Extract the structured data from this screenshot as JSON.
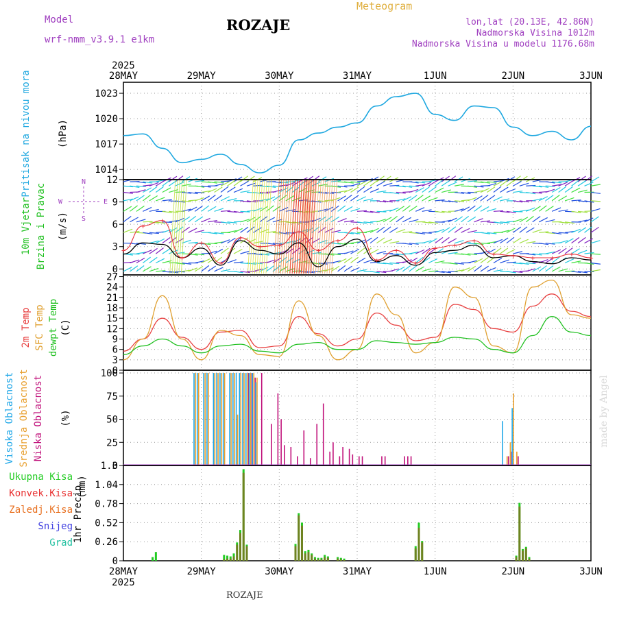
{
  "header": {
    "model_label": "Model",
    "model_name": "wrf-nmm_v3.9.1  e1km",
    "title": "ROZAJE",
    "meteogram": "Meteogram",
    "coords": "lon,lat (20.13E, 42.86N)",
    "elevation": "Nadmorska Visina 1012m",
    "model_elevation": "Nadmorska Visina u modelu 1176.68m"
  },
  "footer": {
    "station": "ROZAJE",
    "watermark": "made by Angel"
  },
  "colors": {
    "pressure": "#1fa8e0",
    "wind_speed": "#000000",
    "gust": "#e8313a",
    "temp2m": "#e84040",
    "sfc_temp": "#e0a030",
    "dewpoint": "#20c020",
    "cloud_high": "#22a8e8",
    "cloud_mid": "#e8a030",
    "cloud_low": "#c0107a",
    "precip_total": "#22cc22",
    "precip_conv": "#e83030",
    "precip_frz": "#e87020",
    "precip_snow": "#4040e0",
    "precip_hail": "#20c0a0",
    "model": "#a040c0"
  },
  "chart_data": [
    {
      "type": "line",
      "title": "",
      "ylabel_lines": [
        "Pritisak na nivou mora",
        "(hPa)"
      ],
      "ylim": [
        1012.8,
        1024.3
      ],
      "y_ticks": [
        1014,
        1017,
        1020,
        1023
      ],
      "x_ticks": [
        "28MAY",
        "29MAY",
        "30MAY",
        "31MAY",
        "1JUN",
        "2JUN",
        "3JUN"
      ],
      "x_year": "2025",
      "x_hours": [
        0,
        6,
        12,
        18,
        24,
        30,
        36,
        42,
        48,
        54,
        60,
        66,
        72,
        78,
        84,
        90,
        96,
        102,
        108,
        114,
        120,
        126,
        132,
        138,
        144
      ],
      "series": [
        {
          "values": [
            1018.0,
            1018.2,
            1016.5,
            1014.8,
            1015.2,
            1015.8,
            1014.6,
            1013.6,
            1014.5,
            1017.5,
            1018.3,
            1019.0,
            1019.5,
            1021.5,
            1022.6,
            1023.0,
            1020.5,
            1019.8,
            1021.5,
            1021.3,
            1019.0,
            1018.0,
            1018.5,
            1017.5,
            1019.1
          ]
        }
      ]
    },
    {
      "type": "line",
      "title": "",
      "ylabel_lines": [
        "10m Vjetar",
        "Brzina i Pravac",
        "(m/s)"
      ],
      "compass": {
        "n": "N",
        "w": "W",
        "e": "E",
        "s": "S"
      },
      "ylim": [
        -0.8,
        12
      ],
      "y_ticks": [
        0,
        3,
        6,
        9,
        12
      ],
      "x_hours": [
        0,
        6,
        12,
        18,
        24,
        30,
        36,
        42,
        48,
        54,
        60,
        66,
        72,
        78,
        84,
        90,
        96,
        102,
        108,
        114,
        120,
        126,
        132,
        138,
        144
      ],
      "series": [
        {
          "name": "wind",
          "values": [
            2.0,
            3.5,
            3.3,
            1.5,
            2.8,
            0.5,
            3.8,
            2.5,
            2.0,
            3.5,
            0.3,
            3.0,
            4.0,
            1.0,
            1.8,
            0.5,
            2.2,
            2.5,
            3.2,
            1.5,
            1.8,
            1.0,
            0.7,
            1.5,
            1.2
          ]
        },
        {
          "name": "gust",
          "values": [
            2.5,
            5.8,
            6.5,
            1.5,
            3.5,
            0.8,
            4.2,
            3.0,
            3.2,
            5.0,
            2.5,
            3.8,
            5.5,
            1.2,
            2.5,
            0.8,
            2.8,
            3.2,
            3.8,
            2.0,
            1.8,
            1.5,
            1.5,
            2.0,
            1.5
          ]
        }
      ]
    },
    {
      "type": "line",
      "title": "",
      "ylabel_lines": [
        "2m Temp",
        "SFC Temp",
        "dewpt Temp",
        "(C)"
      ],
      "ylim": [
        0,
        27.5
      ],
      "y_ticks": [
        0,
        3,
        6,
        9,
        12,
        15,
        18,
        21,
        24,
        27
      ],
      "x_hours": [
        0,
        6,
        12,
        18,
        24,
        30,
        36,
        42,
        48,
        54,
        60,
        66,
        72,
        78,
        84,
        90,
        96,
        102,
        108,
        114,
        120,
        126,
        132,
        138,
        144
      ],
      "series": [
        {
          "name": "2m Temp",
          "values": [
            5.5,
            9.0,
            15.0,
            9.5,
            6.0,
            11.0,
            11.5,
            6.5,
            7.0,
            15.5,
            10.5,
            7.0,
            9.0,
            16.5,
            13.0,
            8.5,
            9.5,
            19.0,
            17.5,
            12.0,
            11.0,
            18.5,
            22.0,
            17.0,
            15.5
          ]
        },
        {
          "name": "SFC Temp",
          "values": [
            3.0,
            9.0,
            21.5,
            9.0,
            3.0,
            11.5,
            10.0,
            4.5,
            4.0,
            20.0,
            10.0,
            3.0,
            6.0,
            22.0,
            16.0,
            5.0,
            8.0,
            24.0,
            21.0,
            7.0,
            5.0,
            24.0,
            26.0,
            16.0,
            15.0
          ]
        },
        {
          "name": "dewpt Temp",
          "values": [
            4.5,
            7.0,
            9.0,
            7.0,
            5.0,
            7.0,
            7.5,
            5.5,
            5.0,
            7.5,
            8.0,
            6.0,
            6.0,
            8.5,
            8.0,
            7.5,
            8.0,
            9.5,
            9.0,
            6.0,
            5.0,
            10.0,
            15.5,
            11.0,
            10.0
          ]
        }
      ]
    },
    {
      "type": "bar",
      "title": "",
      "ylabel_lines": [
        "Visoka Oblacnost",
        "Srednja Oblacnost",
        "Niska Oblacnost",
        "(%)"
      ],
      "ylim": [
        0,
        103
      ],
      "y_ticks": [
        0,
        25,
        50,
        75,
        100
      ],
      "x_hours": [
        22,
        23,
        25,
        26,
        28,
        29,
        30,
        31,
        33,
        34,
        35,
        36,
        37,
        38,
        39,
        40,
        41,
        42,
        45,
        47,
        48,
        49,
        51,
        53,
        55,
        57,
        59,
        61,
        63,
        64,
        66,
        67,
        69,
        70,
        72,
        73,
        79,
        80,
        86,
        87,
        88,
        117,
        118,
        119,
        120,
        121
      ],
      "series": [
        {
          "name": "Visoka Oblacnost",
          "values": [
            100,
            100,
            100,
            100,
            100,
            100,
            100,
            100,
            100,
            100,
            100,
            100,
            100,
            100,
            100,
            100,
            90,
            0,
            0,
            0,
            0,
            0,
            0,
            0,
            0,
            0,
            0,
            0,
            0,
            0,
            0,
            0,
            0,
            0,
            0,
            0,
            0,
            0,
            0,
            0,
            0,
            48,
            0,
            0,
            62,
            0
          ]
        },
        {
          "name": "Srednja Oblacnost",
          "values": [
            100,
            100,
            100,
            100,
            100,
            100,
            100,
            100,
            100,
            100,
            55,
            100,
            100,
            100,
            100,
            100,
            95,
            0,
            0,
            0,
            0,
            0,
            0,
            0,
            0,
            0,
            0,
            0,
            0,
            0,
            0,
            0,
            0,
            0,
            0,
            0,
            0,
            0,
            0,
            0,
            0,
            0,
            10,
            25,
            78,
            15
          ]
        },
        {
          "name": "Niska Oblacnost",
          "values": [
            0,
            0,
            0,
            0,
            0,
            0,
            0,
            0,
            0,
            0,
            0,
            0,
            0,
            100,
            100,
            95,
            0,
            100,
            45,
            78,
            50,
            22,
            20,
            10,
            38,
            8,
            45,
            67,
            15,
            25,
            10,
            20,
            18,
            12,
            10,
            10,
            10,
            10,
            10,
            10,
            10,
            0,
            10,
            15,
            0,
            10
          ]
        }
      ]
    },
    {
      "type": "bar",
      "title": "",
      "ylabel_lines": [
        "1hr Precip",
        "(mm)"
      ],
      "legend": [
        "Ukupna Kisa",
        "Konvek.Kisa",
        "Zaledj.Kisa",
        "Snijeg",
        "Grad"
      ],
      "ylim": [
        0,
        1.3
      ],
      "y_ticks": [
        0,
        0.26,
        0.52,
        0.78,
        1.04,
        1.3
      ],
      "x_hours": [
        9,
        10,
        31,
        32,
        33,
        34,
        35,
        36,
        37,
        38,
        53,
        54,
        55,
        56,
        57,
        58,
        59,
        60,
        61,
        62,
        63,
        66,
        67,
        68,
        90,
        91,
        92,
        121,
        122,
        123,
        124,
        125
      ],
      "series": [
        {
          "name": "Ukupna Kisa",
          "values": [
            0.05,
            0.12,
            0.08,
            0.07,
            0.06,
            0.1,
            0.25,
            0.42,
            1.25,
            0.22,
            0.23,
            0.65,
            0.52,
            0.13,
            0.15,
            0.1,
            0.05,
            0.04,
            0.04,
            0.08,
            0.06,
            0.05,
            0.04,
            0.03,
            0.2,
            0.52,
            0.27,
            0.07,
            0.79,
            0.16,
            0.19,
            0.05
          ]
        },
        {
          "name": "Konvek.Kisa",
          "values": [
            0,
            0,
            0.02,
            0.03,
            0.03,
            0.06,
            0.22,
            0.38,
            1.2,
            0.2,
            0.2,
            0.62,
            0.48,
            0.1,
            0.12,
            0.08,
            0.03,
            0.02,
            0.02,
            0.05,
            0.04,
            0.03,
            0.02,
            0.01,
            0.17,
            0.45,
            0.25,
            0.05,
            0.74,
            0.14,
            0.17,
            0.03
          ]
        }
      ]
    }
  ]
}
